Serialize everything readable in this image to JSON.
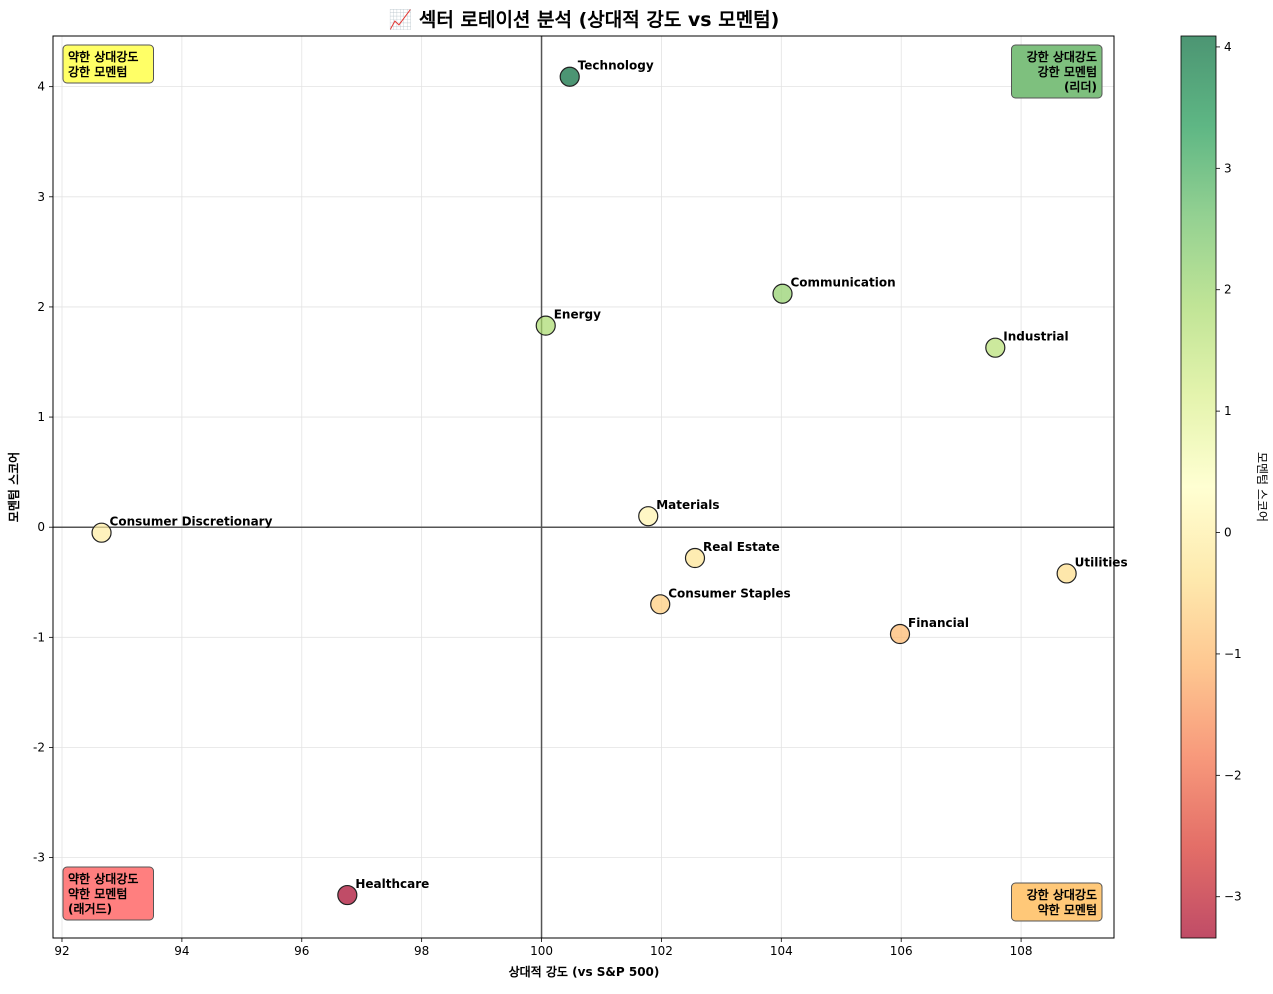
{
  "chart_data": {
    "type": "scatter",
    "title": "📈 섹터 로테이션 분석 (상대적 강도 vs 모멘텀)",
    "xlabel": "상대적 강도 (vs S&P 500)",
    "ylabel": "모멘텀 스코어",
    "xlim": [
      91.85,
      109.55
    ],
    "ylim": [
      -3.73,
      4.46
    ],
    "x_ticks": [
      92,
      94,
      96,
      98,
      100,
      102,
      104,
      106,
      108
    ],
    "y_ticks": [
      -3,
      -2,
      -1,
      0,
      1,
      2,
      3,
      4
    ],
    "grid": true,
    "reference_lines": {
      "x": 100,
      "y": 0
    },
    "points": [
      {
        "name": "Technology",
        "x": 100.47,
        "y": 4.09
      },
      {
        "name": "Communication",
        "x": 104.02,
        "y": 2.12
      },
      {
        "name": "Energy",
        "x": 100.07,
        "y": 1.83
      },
      {
        "name": "Industrial",
        "x": 107.57,
        "y": 1.63
      },
      {
        "name": "Consumer Discretionary",
        "x": 92.66,
        "y": -0.05
      },
      {
        "name": "Materials",
        "x": 101.78,
        "y": 0.1
      },
      {
        "name": "Real Estate",
        "x": 102.56,
        "y": -0.28
      },
      {
        "name": "Utilities",
        "x": 108.76,
        "y": -0.42
      },
      {
        "name": "Consumer Staples",
        "x": 101.98,
        "y": -0.7
      },
      {
        "name": "Financial",
        "x": 105.98,
        "y": -0.97
      },
      {
        "name": "Healthcare",
        "x": 96.76,
        "y": -3.34
      }
    ],
    "quadrant_labels": [
      {
        "id": "top-left",
        "lines": [
          "약한 상대강도",
          "강한 모멘텀"
        ],
        "color": "#ffff66"
      },
      {
        "id": "top-right",
        "lines": [
          "강한 상대강도",
          "강한 모멘텀",
          "(리더)"
        ],
        "color": "#7ec07e"
      },
      {
        "id": "bottom-left",
        "lines": [
          "약한 상대강도",
          "약한 모멘텀",
          "(래거드)"
        ],
        "color": "#ff7f7f"
      },
      {
        "id": "bottom-right",
        "lines": [
          "강한 상대강도",
          "약한 모멘텀"
        ],
        "color": "#ffc878"
      }
    ],
    "colorbar": {
      "label": "모멘텀 스코어",
      "min": -3.34,
      "max": 4.09,
      "ticks": [
        -3,
        -2,
        -1,
        0,
        1,
        2,
        3,
        4
      ],
      "colormap": "RdYlGn",
      "alpha": 0.7
    }
  }
}
